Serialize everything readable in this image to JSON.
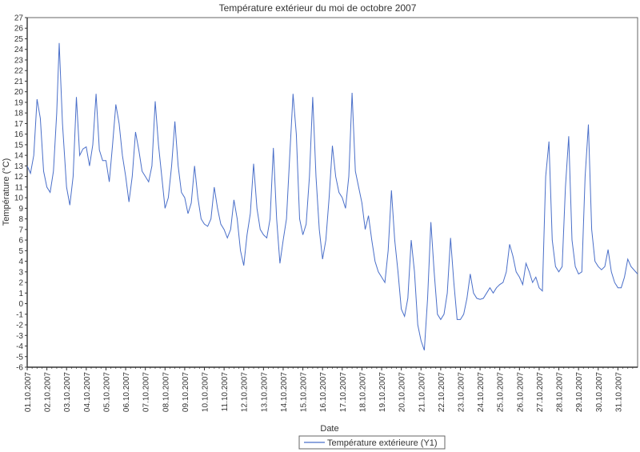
{
  "chart_data": {
    "type": "line",
    "title": "Température extérieur du moi de octobre 2007",
    "xlabel": "Date",
    "ylabel": "Température (°C)",
    "ylim": [
      -6,
      27
    ],
    "ytick_step": 1,
    "grid": false,
    "legend_position": "bottom-center",
    "x_tick_labels": [
      "01.10.2007",
      "02.10.2007",
      "03.10.2007",
      "04.10.2007",
      "05.10.2007",
      "06.10.2007",
      "07.10.2007",
      "08.10.2007",
      "09.10.2007",
      "10.10.2007",
      "11.10.2007",
      "12.10.2007",
      "13.10.2007",
      "14.10.2007",
      "15.10.2007",
      "16.10.2007",
      "17.10.2007",
      "18.10.2007",
      "19.10.2007",
      "20.10.2007",
      "21.10.2007",
      "22.10.2007",
      "23.10.2007",
      "24.10.2007",
      "25.10.2007",
      "26.10.2007",
      "27.10.2007",
      "28.10.2007",
      "29.10.2007",
      "30.10.2007",
      "31.10.2007"
    ],
    "series": [
      {
        "name": "Température extérieure (Y1)",
        "color": "#4a6fc9",
        "points": [
          [
            "01.10.2007 00:00",
            13.0
          ],
          [
            "01.10.2007 04:00",
            12.3
          ],
          [
            "01.10.2007 08:00",
            14.0
          ],
          [
            "01.10.2007 12:00",
            19.3
          ],
          [
            "01.10.2007 16:00",
            17.5
          ],
          [
            "01.10.2007 20:00",
            12.5
          ],
          [
            "02.10.2007 00:00",
            11.0
          ],
          [
            "02.10.2007 04:00",
            10.5
          ],
          [
            "02.10.2007 08:00",
            12.5
          ],
          [
            "02.10.2007 12:00",
            18.0
          ],
          [
            "02.10.2007 15:00",
            24.6
          ],
          [
            "02.10.2007 19:00",
            17.0
          ],
          [
            "03.10.2007 00:00",
            11.0
          ],
          [
            "03.10.2007 04:00",
            9.3
          ],
          [
            "03.10.2007 08:00",
            12.0
          ],
          [
            "03.10.2007 12:00",
            19.5
          ],
          [
            "03.10.2007 16:00",
            14.0
          ],
          [
            "03.10.2007 20:00",
            14.6
          ],
          [
            "04.10.2007 00:00",
            14.8
          ],
          [
            "04.10.2007 04:00",
            13.0
          ],
          [
            "04.10.2007 08:00",
            15.0
          ],
          [
            "04.10.2007 12:00",
            19.8
          ],
          [
            "04.10.2007 16:00",
            14.5
          ],
          [
            "04.10.2007 20:00",
            13.5
          ],
          [
            "05.10.2007 00:00",
            13.5
          ],
          [
            "05.10.2007 04:00",
            11.5
          ],
          [
            "05.10.2007 08:00",
            15.0
          ],
          [
            "05.10.2007 12:00",
            18.8
          ],
          [
            "05.10.2007 16:00",
            17.0
          ],
          [
            "05.10.2007 20:00",
            14.0
          ],
          [
            "06.10.2007 00:00",
            12.0
          ],
          [
            "06.10.2007 04:00",
            9.6
          ],
          [
            "06.10.2007 08:00",
            12.0
          ],
          [
            "06.10.2007 12:00",
            16.2
          ],
          [
            "06.10.2007 16:00",
            14.5
          ],
          [
            "06.10.2007 20:00",
            12.5
          ],
          [
            "07.10.2007 00:00",
            12.0
          ],
          [
            "07.10.2007 04:00",
            11.5
          ],
          [
            "07.10.2007 08:00",
            13.0
          ],
          [
            "07.10.2007 12:00",
            19.1
          ],
          [
            "07.10.2007 16:00",
            15.0
          ],
          [
            "07.10.2007 20:00",
            12.0
          ],
          [
            "08.10.2007 00:00",
            9.0
          ],
          [
            "08.10.2007 04:00",
            10.0
          ],
          [
            "08.10.2007 08:00",
            13.0
          ],
          [
            "08.10.2007 12:00",
            17.2
          ],
          [
            "08.10.2007 16:00",
            13.0
          ],
          [
            "08.10.2007 20:00",
            10.5
          ],
          [
            "09.10.2007 00:00",
            10.0
          ],
          [
            "09.10.2007 04:00",
            8.5
          ],
          [
            "09.10.2007 08:00",
            9.5
          ],
          [
            "09.10.2007 12:00",
            13.0
          ],
          [
            "09.10.2007 16:00",
            10.0
          ],
          [
            "09.10.2007 20:00",
            8.0
          ],
          [
            "10.10.2007 00:00",
            7.5
          ],
          [
            "10.10.2007 04:00",
            7.3
          ],
          [
            "10.10.2007 08:00",
            8.0
          ],
          [
            "10.10.2007 12:00",
            11.0
          ],
          [
            "10.10.2007 16:00",
            9.0
          ],
          [
            "10.10.2007 20:00",
            7.5
          ],
          [
            "11.10.2007 00:00",
            7.0
          ],
          [
            "11.10.2007 04:00",
            6.2
          ],
          [
            "11.10.2007 08:00",
            7.0
          ],
          [
            "11.10.2007 12:00",
            9.8
          ],
          [
            "11.10.2007 16:00",
            8.0
          ],
          [
            "11.10.2007 20:00",
            5.0
          ],
          [
            "12.10.2007 00:00",
            3.6
          ],
          [
            "12.10.2007 04:00",
            6.5
          ],
          [
            "12.10.2007 08:00",
            8.5
          ],
          [
            "12.10.2007 12:00",
            13.2
          ],
          [
            "12.10.2007 16:00",
            9.0
          ],
          [
            "12.10.2007 20:00",
            7.0
          ],
          [
            "13.10.2007 00:00",
            6.5
          ],
          [
            "13.10.2007 04:00",
            6.2
          ],
          [
            "13.10.2007 08:00",
            8.0
          ],
          [
            "13.10.2007 12:00",
            14.7
          ],
          [
            "13.10.2007 16:00",
            8.0
          ],
          [
            "13.10.2007 20:00",
            3.8
          ],
          [
            "14.10.2007 00:00",
            6.0
          ],
          [
            "14.10.2007 04:00",
            8.0
          ],
          [
            "14.10.2007 08:00",
            14.0
          ],
          [
            "14.10.2007 12:00",
            19.8
          ],
          [
            "14.10.2007 16:00",
            16.0
          ],
          [
            "14.10.2007 20:00",
            8.0
          ],
          [
            "15.10.2007 00:00",
            6.5
          ],
          [
            "15.10.2007 04:00",
            7.5
          ],
          [
            "15.10.2007 08:00",
            12.0
          ],
          [
            "15.10.2007 12:00",
            19.5
          ],
          [
            "15.10.2007 16:00",
            12.0
          ],
          [
            "15.10.2007 20:00",
            7.0
          ],
          [
            "16.10.2007 00:00",
            4.2
          ],
          [
            "16.10.2007 04:00",
            6.0
          ],
          [
            "16.10.2007 08:00",
            10.0
          ],
          [
            "16.10.2007 12:00",
            14.9
          ],
          [
            "16.10.2007 16:00",
            12.0
          ],
          [
            "16.10.2007 20:00",
            10.5
          ],
          [
            "17.10.2007 00:00",
            10.0
          ],
          [
            "17.10.2007 04:00",
            9.0
          ],
          [
            "17.10.2007 08:00",
            12.0
          ],
          [
            "17.10.2007 12:00",
            19.9
          ],
          [
            "17.10.2007 16:00",
            12.5
          ],
          [
            "17.10.2007 20:00",
            11.0
          ],
          [
            "18.10.2007 00:00",
            9.5
          ],
          [
            "18.10.2007 04:00",
            7.0
          ],
          [
            "18.10.2007 08:00",
            8.3
          ],
          [
            "18.10.2007 12:00",
            6.0
          ],
          [
            "18.10.2007 16:00",
            4.0
          ],
          [
            "18.10.2007 20:00",
            3.0
          ],
          [
            "19.10.2007 00:00",
            2.5
          ],
          [
            "19.10.2007 04:00",
            2.0
          ],
          [
            "19.10.2007 08:00",
            5.0
          ],
          [
            "19.10.2007 12:00",
            10.7
          ],
          [
            "19.10.2007 16:00",
            6.0
          ],
          [
            "19.10.2007 20:00",
            3.0
          ],
          [
            "20.10.2007 00:00",
            -0.5
          ],
          [
            "20.10.2007 04:00",
            -1.2
          ],
          [
            "20.10.2007 08:00",
            0.5
          ],
          [
            "20.10.2007 12:00",
            6.0
          ],
          [
            "20.10.2007 16:00",
            3.0
          ],
          [
            "20.10.2007 20:00",
            -2.0
          ],
          [
            "21.10.2007 00:00",
            -3.5
          ],
          [
            "21.10.2007 04:00",
            -4.4
          ],
          [
            "21.10.2007 08:00",
            0.5
          ],
          [
            "21.10.2007 12:00",
            7.7
          ],
          [
            "21.10.2007 16:00",
            3.0
          ],
          [
            "21.10.2007 20:00",
            -1.0
          ],
          [
            "22.10.2007 00:00",
            -1.5
          ],
          [
            "22.10.2007 04:00",
            -1.0
          ],
          [
            "22.10.2007 08:00",
            1.0
          ],
          [
            "22.10.2007 12:00",
            6.2
          ],
          [
            "22.10.2007 16:00",
            2.0
          ],
          [
            "22.10.2007 20:00",
            -1.5
          ],
          [
            "23.10.2007 00:00",
            -1.5
          ],
          [
            "23.10.2007 04:00",
            -1.0
          ],
          [
            "23.10.2007 08:00",
            0.5
          ],
          [
            "23.10.2007 12:00",
            2.8
          ],
          [
            "23.10.2007 16:00",
            1.0
          ],
          [
            "23.10.2007 20:00",
            0.5
          ],
          [
            "24.10.2007 00:00",
            0.4
          ],
          [
            "24.10.2007 04:00",
            0.5
          ],
          [
            "24.10.2007 08:00",
            1.0
          ],
          [
            "24.10.2007 12:00",
            1.5
          ],
          [
            "24.10.2007 16:00",
            1.0
          ],
          [
            "24.10.2007 20:00",
            1.5
          ],
          [
            "25.10.2007 00:00",
            1.8
          ],
          [
            "25.10.2007 04:00",
            2.0
          ],
          [
            "25.10.2007 08:00",
            3.0
          ],
          [
            "25.10.2007 12:00",
            5.6
          ],
          [
            "25.10.2007 16:00",
            4.5
          ],
          [
            "25.10.2007 20:00",
            3.0
          ],
          [
            "26.10.2007 00:00",
            2.5
          ],
          [
            "26.10.2007 04:00",
            1.8
          ],
          [
            "26.10.2007 08:00",
            3.8
          ],
          [
            "26.10.2007 12:00",
            3.0
          ],
          [
            "26.10.2007 16:00",
            2.0
          ],
          [
            "26.10.2007 20:00",
            2.5
          ],
          [
            "27.10.2007 00:00",
            1.5
          ],
          [
            "27.10.2007 04:00",
            1.2
          ],
          [
            "27.10.2007 08:00",
            12.0
          ],
          [
            "27.10.2007 12:00",
            15.3
          ],
          [
            "27.10.2007 16:00",
            6.0
          ],
          [
            "27.10.2007 20:00",
            3.5
          ],
          [
            "28.10.2007 00:00",
            3.0
          ],
          [
            "28.10.2007 04:00",
            3.5
          ],
          [
            "28.10.2007 08:00",
            11.0
          ],
          [
            "28.10.2007 12:00",
            15.8
          ],
          [
            "28.10.2007 16:00",
            6.0
          ],
          [
            "28.10.2007 20:00",
            3.5
          ],
          [
            "29.10.2007 00:00",
            2.8
          ],
          [
            "29.10.2007 04:00",
            3.0
          ],
          [
            "29.10.2007 08:00",
            12.0
          ],
          [
            "29.10.2007 12:00",
            16.9
          ],
          [
            "29.10.2007 16:00",
            7.0
          ],
          [
            "29.10.2007 20:00",
            4.0
          ],
          [
            "30.10.2007 00:00",
            3.5
          ],
          [
            "30.10.2007 04:00",
            3.2
          ],
          [
            "30.10.2007 08:00",
            3.5
          ],
          [
            "30.10.2007 12:00",
            5.1
          ],
          [
            "30.10.2007 16:00",
            3.0
          ],
          [
            "30.10.2007 20:00",
            2.0
          ],
          [
            "31.10.2007 00:00",
            1.5
          ],
          [
            "31.10.2007 04:00",
            1.5
          ],
          [
            "31.10.2007 08:00",
            2.5
          ],
          [
            "31.10.2007 12:00",
            4.2
          ],
          [
            "31.10.2007 16:00",
            3.5
          ],
          [
            "31.10.2007 23:59",
            2.8
          ]
        ]
      }
    ]
  }
}
